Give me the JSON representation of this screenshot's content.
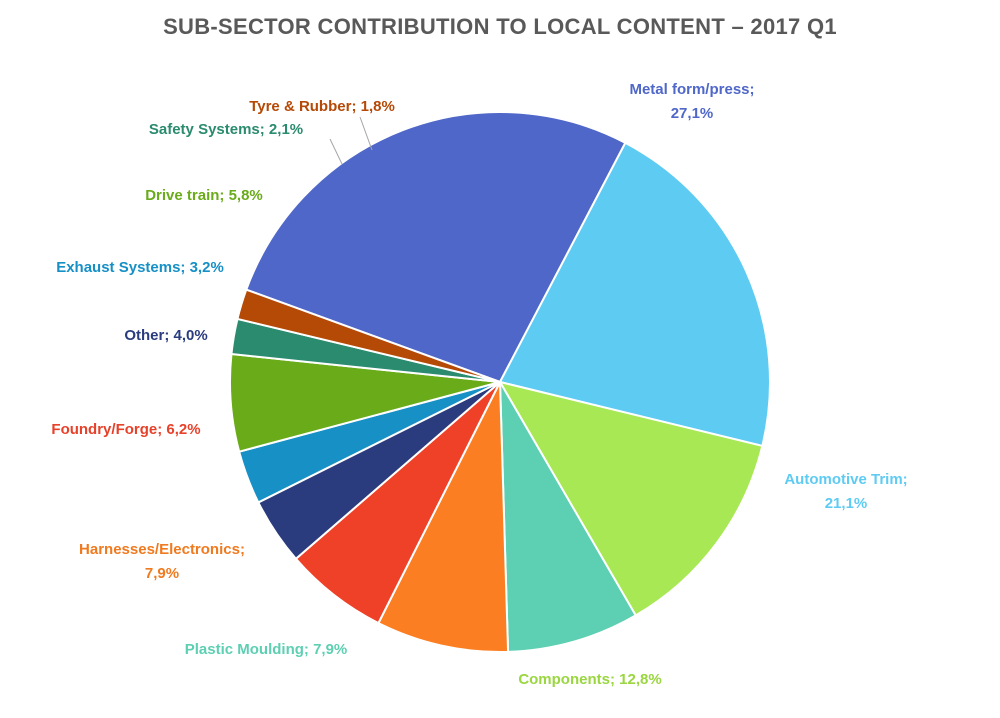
{
  "chart_data": {
    "type": "pie",
    "title": "SUB-SECTOR CONTRIBUTION TO LOCAL CONTENT – 2017 Q1",
    "slices": [
      {
        "key": "metal-form-press",
        "label": "Metal form/press;",
        "value": 27.1,
        "value_label": "27,1%",
        "color": "#4f67c8",
        "label_color": "#4f67c8"
      },
      {
        "key": "automotive-trim",
        "label": "Automotive Trim;",
        "value": 21.1,
        "value_label": "21,1%",
        "color": "#5ecbf3",
        "label_color": "#5ecbf3"
      },
      {
        "key": "components",
        "label": "Components;",
        "value": 12.8,
        "value_label": "12,8%",
        "color": "#a8e854",
        "label_color": "#9ad640"
      },
      {
        "key": "plastic-moulding",
        "label": "Plastic Moulding;",
        "value": 7.9,
        "value_label": "7,9%",
        "color": "#5dcfb2",
        "label_color": "#5dcfb2"
      },
      {
        "key": "harnesses-electronics",
        "label": "Harnesses/Electronics;",
        "value": 7.9,
        "value_label": "7,9%",
        "color": "#fb7f22",
        "label_color": "#f07a1f"
      },
      {
        "key": "foundry-forge",
        "label": "Foundry/Forge;",
        "value": 6.2,
        "value_label": "6,2%",
        "color": "#ee4127",
        "label_color": "#e8412a"
      },
      {
        "key": "other",
        "label": "Other;",
        "value": 4.0,
        "value_label": "4,0%",
        "color": "#2a3c7e",
        "label_color": "#2a3c7e"
      },
      {
        "key": "exhaust-systems",
        "label": "Exhaust Systems;",
        "value": 3.2,
        "value_label": "3,2%",
        "color": "#1790c6",
        "label_color": "#1790c6"
      },
      {
        "key": "drive-train",
        "label": "Drive train;",
        "value": 5.8,
        "value_label": "5,8%",
        "color": "#6aab1a",
        "label_color": "#6aab1a"
      },
      {
        "key": "safety-systems",
        "label": "Safety Systems;",
        "value": 2.1,
        "value_label": "2,1%",
        "color": "#2a8b6e",
        "label_color": "#2a8b6e"
      },
      {
        "key": "tyre-rubber",
        "label": "Tyre & Rubber;",
        "value": 1.8,
        "value_label": "1,8%",
        "color": "#b54906",
        "label_color": "#b54906"
      }
    ]
  }
}
